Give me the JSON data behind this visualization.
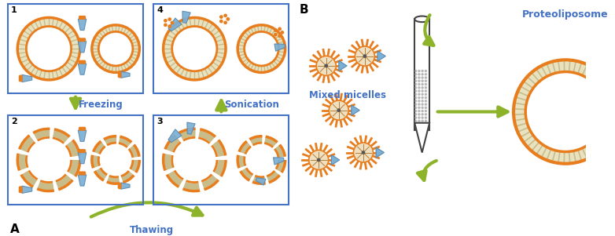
{
  "bg_color": "#ffffff",
  "arrow_color": "#8db32a",
  "text_color_blue": "#4472c4",
  "orange": "#e87d1e",
  "lipid_tan": "#c8bc8a",
  "lipid_light": "#e8e2c0",
  "box_border": "#4472c4",
  "protein_blue": "#7bafd4",
  "protein_dark": "#5a8ab0",
  "label_A": "A",
  "label_B": "B",
  "label_freezing": "Freezing",
  "label_sonication": "Sonication",
  "label_thawing": "Thawing",
  "label_mixed": "Mixed micelles",
  "label_proto": "Proteoliposome"
}
